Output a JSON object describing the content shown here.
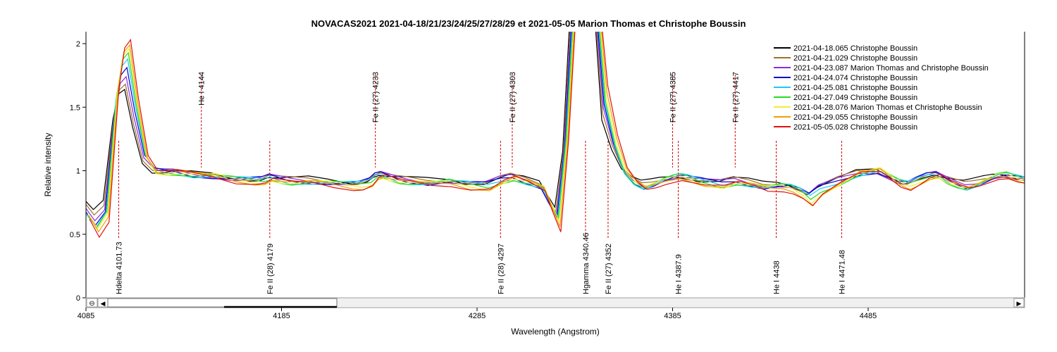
{
  "chart_data": {
    "type": "line",
    "title": "NOVACAS2021   2021-04-18/21/23/24/25/27/28/29 et 2021-05-05   Marion Thomas et Christophe Boussin",
    "xlabel": "Wavelength (Angstrom)",
    "ylabel": "Relative intensity",
    "xlim": [
      4085,
      4570
    ],
    "ylim": [
      0,
      2.1
    ],
    "x_ticks": [
      "4085",
      "4185",
      "4285",
      "4385",
      "4485"
    ],
    "y_ticks": [
      "0",
      "0.5",
      "1",
      "1.5",
      "2"
    ],
    "grid": false,
    "legend_position": "top-right",
    "base_x": [
      4085,
      4090,
      4095,
      4100,
      4103,
      4106,
      4110,
      4115,
      4120,
      4125,
      4130,
      4140,
      4150,
      4160,
      4170,
      4175,
      4179,
      4185,
      4190,
      4200,
      4210,
      4220,
      4225,
      4230,
      4233,
      4236,
      4240,
      4245,
      4250,
      4260,
      4270,
      4280,
      4290,
      4297,
      4300,
      4303,
      4310,
      4318,
      4322,
      4326,
      4330,
      4334,
      4337,
      4340,
      4343,
      4346,
      4350,
      4355,
      4360,
      4365,
      4370,
      4375,
      4380,
      4385,
      4388,
      4392,
      4400,
      4410,
      4417,
      4425,
      4432,
      4440,
      4445,
      4450,
      4455,
      4460,
      4470,
      4480,
      4490,
      4500,
      4505,
      4510,
      4515,
      4520,
      4525,
      4530,
      4535,
      4540,
      4545,
      4550,
      4555,
      4560,
      4570
    ],
    "base_y": [
      0.7,
      0.6,
      0.7,
      1.5,
      1.75,
      1.8,
      1.45,
      1.1,
      1.0,
      0.99,
      0.99,
      0.97,
      0.96,
      0.94,
      0.93,
      0.93,
      0.95,
      0.93,
      0.92,
      0.92,
      0.91,
      0.9,
      0.9,
      0.92,
      0.96,
      0.97,
      0.95,
      0.93,
      0.92,
      0.91,
      0.92,
      0.9,
      0.89,
      0.93,
      0.94,
      0.95,
      0.92,
      0.88,
      0.76,
      0.65,
      1.2,
      2.1,
      2.1,
      2.1,
      2.1,
      2.1,
      1.5,
      1.2,
      1.0,
      0.92,
      0.88,
      0.9,
      0.93,
      0.95,
      0.96,
      0.95,
      0.92,
      0.9,
      0.92,
      0.9,
      0.88,
      0.89,
      0.88,
      0.85,
      0.8,
      0.86,
      0.92,
      0.98,
      1.0,
      0.92,
      0.9,
      0.93,
      0.96,
      0.97,
      0.93,
      0.9,
      0.88,
      0.9,
      0.93,
      0.96,
      0.97,
      0.95,
      0.92
    ],
    "series": [
      {
        "name": "2021-04-18.065  Christophe Boussin",
        "color": "#000000"
      },
      {
        "name": "2021-04-21.029  Christophe Boussin",
        "color": "#a0702a"
      },
      {
        "name": "2021-04-23.087  Marion Thomas and Christophe Boussin",
        "color": "#8a2be2"
      },
      {
        "name": "2021-04-24.074  Christophe Boussin",
        "color": "#0000cc"
      },
      {
        "name": "2021-04-25.081  Christophe Boussin",
        "color": "#1ec8ff"
      },
      {
        "name": "2021-04-27.049  Christophe Boussin",
        "color": "#22dd22"
      },
      {
        "name": "2021-04-28.076  Marion Thomas et Christophe Boussin",
        "color": "#eeee33"
      },
      {
        "name": "2021-04-29.055  Christophe Boussin",
        "color": "#f0a000"
      },
      {
        "name": "2021-05-05.028  Christophe Boussin",
        "color": "#e01010"
      }
    ],
    "lines_top": [
      {
        "label": "He I 4144",
        "x": 4144
      },
      {
        "label": "Fe II (27) 4233",
        "x": 4233
      },
      {
        "label": "Fe II (27) 4303",
        "x": 4303
      },
      {
        "label": "Fe II (27) 4385",
        "x": 4385
      },
      {
        "label": "Fe II (27) 4417",
        "x": 4417
      }
    ],
    "lines_bottom": [
      {
        "label": "Hdelta 4101.73",
        "x": 4101.73
      },
      {
        "label": "Fe II (28) 4179",
        "x": 4179
      },
      {
        "label": "Fe II (28) 4297",
        "x": 4297
      },
      {
        "label": "Hgamma 4340.46",
        "x": 4340.46
      },
      {
        "label": "Fe II (27) 4352",
        "x": 4352
      },
      {
        "label": "He I 4387.9",
        "x": 4387.9
      },
      {
        "label": "He I 4438",
        "x": 4438
      },
      {
        "label": "He I 4471.48",
        "x": 4471.48
      }
    ]
  },
  "scrollbar": {
    "zoom_icon": "⊖",
    "left_arrow": "◀",
    "right_arrow": "▶"
  }
}
